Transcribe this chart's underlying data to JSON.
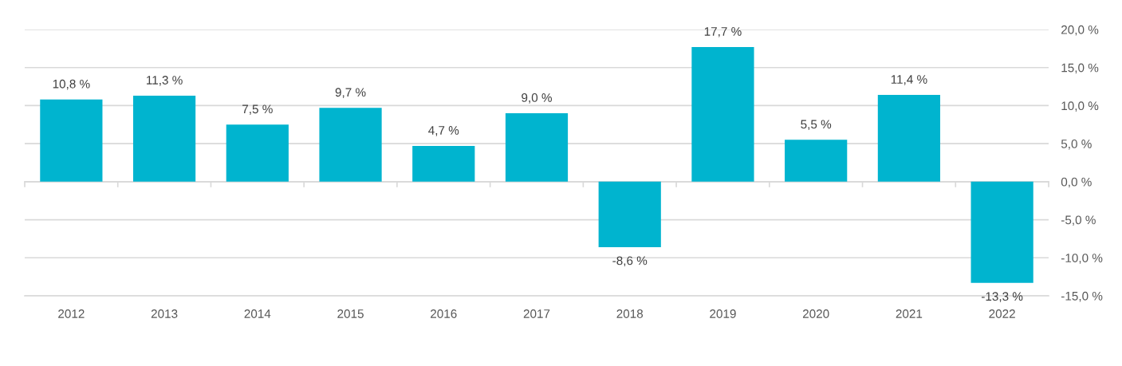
{
  "chart_data": {
    "type": "bar",
    "categories": [
      "2012",
      "2013",
      "2014",
      "2015",
      "2016",
      "2017",
      "2018",
      "2019",
      "2020",
      "2021",
      "2022"
    ],
    "values": [
      10.8,
      11.3,
      7.5,
      9.7,
      4.7,
      9.0,
      -8.6,
      17.7,
      5.5,
      11.4,
      -13.3
    ],
    "color": "#00b4cf",
    "value_labels": [
      "10,8 %",
      "11,3 %",
      "7,5 %",
      "9,7 %",
      "4,7 %",
      "9,0 %",
      "-8,6 %",
      "17,7 %",
      "5,5 %",
      "11,4 %",
      "-13,3 %"
    ],
    "ylim": [
      -15,
      20
    ],
    "yticks": [
      {
        "value": -15,
        "label": "-15,0 %"
      },
      {
        "value": -10,
        "label": "-10,0 %"
      },
      {
        "value": -5,
        "label": "-5,0 %"
      },
      {
        "value": 0,
        "label": "0,0 %"
      },
      {
        "value": 5,
        "label": "5,0 %"
      },
      {
        "value": 10,
        "label": "10,0 %"
      },
      {
        "value": 15,
        "label": "15,0 %"
      },
      {
        "value": 20,
        "label": "20,0 %"
      }
    ],
    "grid": "y"
  }
}
